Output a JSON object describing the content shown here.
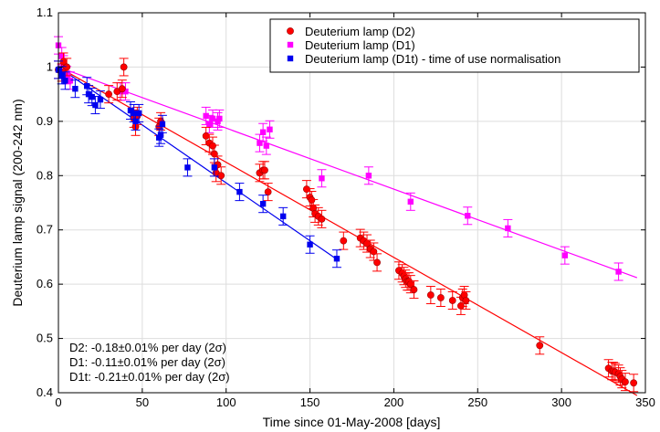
{
  "chart_data": {
    "type": "scatter",
    "title": "",
    "xlabel": "Time since 01-May-2008 [days]",
    "ylabel": "Deuterium lamp signal (200-242 nm)",
    "xlim": [
      0,
      350
    ],
    "ylim": [
      0.4,
      1.1
    ],
    "x_ticks": [
      0,
      50,
      100,
      150,
      200,
      250,
      300,
      350
    ],
    "y_ticks": [
      0.4,
      0.5,
      0.6,
      0.7,
      0.8,
      0.9,
      1,
      1.1
    ],
    "grid": true,
    "legend_position": "top-right",
    "error_bar_half": 0.016,
    "series": [
      {
        "name": "Deuterium lamp (D2)",
        "color": "#ff0000",
        "marker": "circle",
        "fit": [
          [
            0,
            1.0
          ],
          [
            345,
            0.395
          ]
        ],
        "points": [
          [
            0,
            0.995
          ],
          [
            2,
            0.99
          ],
          [
            3,
            1.01
          ],
          [
            5,
            1.0
          ],
          [
            30,
            0.95
          ],
          [
            35,
            0.955
          ],
          [
            38,
            0.96
          ],
          [
            39,
            1.0
          ],
          [
            45,
            0.905
          ],
          [
            46,
            0.89
          ],
          [
            47,
            0.91
          ],
          [
            60,
            0.89
          ],
          [
            61,
            0.9
          ],
          [
            88,
            0.873
          ],
          [
            90,
            0.86
          ],
          [
            92,
            0.855
          ],
          [
            93,
            0.84
          ],
          [
            94,
            0.805
          ],
          [
            95,
            0.82
          ],
          [
            97,
            0.8
          ],
          [
            120,
            0.805
          ],
          [
            122,
            0.81
          ],
          [
            123,
            0.81
          ],
          [
            125,
            0.77
          ],
          [
            148,
            0.775
          ],
          [
            150,
            0.76
          ],
          [
            151,
            0.755
          ],
          [
            152,
            0.74
          ],
          [
            153,
            0.73
          ],
          [
            155,
            0.725
          ],
          [
            157,
            0.72
          ],
          [
            170,
            0.68
          ],
          [
            180,
            0.685
          ],
          [
            182,
            0.68
          ],
          [
            184,
            0.675
          ],
          [
            186,
            0.665
          ],
          [
            188,
            0.66
          ],
          [
            190,
            0.64
          ],
          [
            203,
            0.625
          ],
          [
            205,
            0.62
          ],
          [
            206,
            0.615
          ],
          [
            207,
            0.61
          ],
          [
            208,
            0.605
          ],
          [
            209,
            0.605
          ],
          [
            210,
            0.6
          ],
          [
            212,
            0.59
          ],
          [
            222,
            0.58
          ],
          [
            228,
            0.575
          ],
          [
            235,
            0.57
          ],
          [
            240,
            0.56
          ],
          [
            241,
            0.575
          ],
          [
            242,
            0.58
          ],
          [
            243,
            0.57
          ],
          [
            287,
            0.487
          ],
          [
            328,
            0.445
          ],
          [
            330,
            0.44
          ],
          [
            331,
            0.44
          ],
          [
            332,
            0.438
          ],
          [
            334,
            0.435
          ],
          [
            335,
            0.43
          ],
          [
            336,
            0.425
          ],
          [
            338,
            0.42
          ],
          [
            343,
            0.418
          ]
        ]
      },
      {
        "name": "Deuterium lamp (D1)",
        "color": "#ff00ff",
        "marker": "square",
        "fit": [
          [
            0,
            1.0
          ],
          [
            345,
            0.612
          ]
        ],
        "points": [
          [
            0,
            1.04
          ],
          [
            2,
            1.02
          ],
          [
            3,
            1.005
          ],
          [
            5,
            0.985
          ],
          [
            7,
            0.975
          ],
          [
            37,
            0.955
          ],
          [
            40,
            0.955
          ],
          [
            88,
            0.91
          ],
          [
            90,
            0.895
          ],
          [
            92,
            0.905
          ],
          [
            95,
            0.9
          ],
          [
            96,
            0.905
          ],
          [
            120,
            0.86
          ],
          [
            122,
            0.88
          ],
          [
            124,
            0.855
          ],
          [
            126,
            0.885
          ],
          [
            157,
            0.795
          ],
          [
            185,
            0.8
          ],
          [
            210,
            0.752
          ],
          [
            244,
            0.726
          ],
          [
            268,
            0.703
          ],
          [
            302,
            0.653
          ],
          [
            334,
            0.623
          ]
        ]
      },
      {
        "name": "Deuterium lamp (D1t) - time of use normalisation",
        "color": "#0000ee",
        "marker": "square",
        "fit": [
          [
            0,
            1.0
          ],
          [
            165,
            0.648
          ]
        ],
        "points": [
          [
            0,
            0.995
          ],
          [
            2,
            0.985
          ],
          [
            4,
            0.975
          ],
          [
            10,
            0.96
          ],
          [
            17,
            0.965
          ],
          [
            18,
            0.95
          ],
          [
            20,
            0.945
          ],
          [
            22,
            0.93
          ],
          [
            25,
            0.94
          ],
          [
            43,
            0.92
          ],
          [
            45,
            0.915
          ],
          [
            46,
            0.9
          ],
          [
            48,
            0.915
          ],
          [
            60,
            0.87
          ],
          [
            61,
            0.875
          ],
          [
            62,
            0.895
          ],
          [
            77,
            0.815
          ],
          [
            93,
            0.815
          ],
          [
            108,
            0.77
          ],
          [
            122,
            0.748
          ],
          [
            134,
            0.725
          ],
          [
            150,
            0.673
          ],
          [
            166,
            0.647
          ]
        ]
      }
    ],
    "annotations": [
      "D2: -0.18±0.01% per day (2σ)",
      "D1: -0.11±0.01% per day (2σ)",
      "D1t: -0.21±0.01% per day (2σ)"
    ]
  }
}
